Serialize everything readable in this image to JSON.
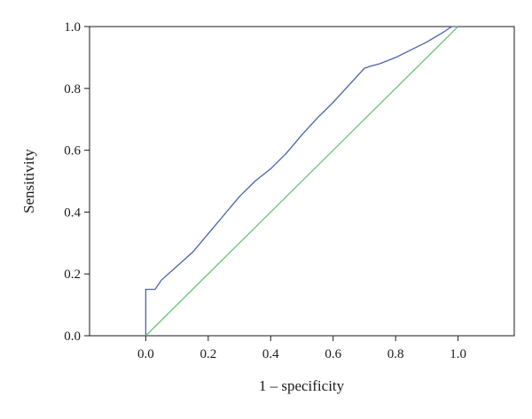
{
  "chart_data": {
    "type": "line",
    "title": "",
    "xlabel": "1 – specificity",
    "ylabel": "Sensitivity",
    "xlim": [
      -0.18,
      1.18
    ],
    "ylim": [
      0.0,
      1.0
    ],
    "xticks": [
      0.0,
      0.2,
      0.4,
      0.6,
      0.8,
      1.0
    ],
    "xtick_labels": [
      "0.0",
      "0.2",
      "0.4",
      "0.6",
      "0.8",
      "1.0"
    ],
    "yticks": [
      0.0,
      0.2,
      0.4,
      0.6,
      0.8,
      1.0
    ],
    "ytick_labels": [
      "0.0",
      "0.2",
      "0.4",
      "0.6",
      "0.8",
      "1.0"
    ],
    "grid": false,
    "legend": "none",
    "series": [
      {
        "color": "#4a62a8",
        "x": [
          0.0,
          0.0,
          0.03,
          0.05,
          0.1,
          0.15,
          0.2,
          0.25,
          0.3,
          0.35,
          0.4,
          0.45,
          0.5,
          0.55,
          0.6,
          0.65,
          0.7,
          0.72,
          0.75,
          0.8,
          0.85,
          0.9,
          0.95,
          0.98,
          1.0
        ],
        "y": [
          0.0,
          0.15,
          0.15,
          0.18,
          0.225,
          0.27,
          0.33,
          0.39,
          0.45,
          0.5,
          0.54,
          0.59,
          0.65,
          0.705,
          0.755,
          0.81,
          0.865,
          0.872,
          0.88,
          0.9,
          0.925,
          0.95,
          0.98,
          1.0,
          1.0
        ]
      },
      {
        "color": "#6cc27a",
        "x": [
          0.0,
          1.0
        ],
        "y": [
          0.0,
          1.0
        ]
      }
    ]
  }
}
